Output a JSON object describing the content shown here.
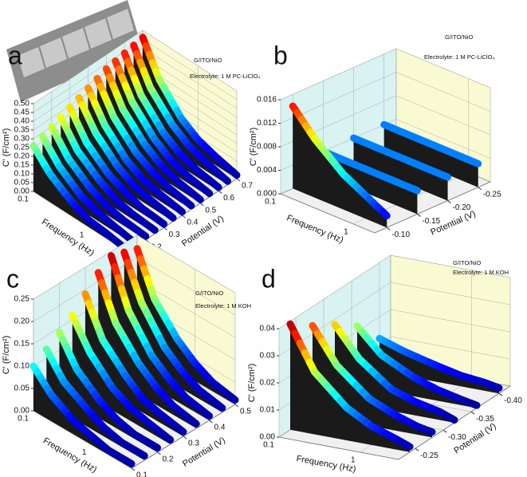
{
  "chart_data": [
    {
      "type": "waterfall",
      "label": "a",
      "annotations": [
        "G/ITO/NiO",
        "Electrolyte: 1 M PC-LiClO₄"
      ],
      "xlabel": "Frequency (Hz)",
      "ylabel": "Potential (V)",
      "zlabel": "C' (F/cm²)",
      "xscale": "log",
      "x": [
        0.1,
        0.2,
        0.5,
        1,
        2,
        5
      ],
      "xlim": [
        0.1,
        5
      ],
      "xticks": [
        0.1,
        1
      ],
      "ylim": [
        0.1,
        0.7
      ],
      "yticks": [
        0.1,
        0.2,
        0.3,
        0.4,
        0.5,
        0.6,
        0.7
      ],
      "zlim": [
        0,
        0.5
      ],
      "zticks": [
        {
          "value": 0,
          "label": "0.00"
        },
        0.05,
        {
          "value": 0.1,
          "label": "0.10"
        },
        0.15,
        {
          "value": 0.2,
          "label": "0.20"
        },
        0.25,
        {
          "value": 0.3,
          "label": "0.30"
        },
        0.35,
        {
          "value": 0.4,
          "label": "0.40"
        },
        0.45,
        {
          "value": 0.5,
          "label": "0.50"
        }
      ],
      "colormap": "jet",
      "grid": true,
      "series": [
        {
          "potential": 0.1,
          "values": [
            0.26,
            0.16,
            0.08,
            0.04,
            0.03,
            0.01
          ]
        },
        {
          "potential": 0.15,
          "values": [
            0.28,
            0.17,
            0.08,
            0.05,
            0.03,
            0.01
          ]
        },
        {
          "potential": 0.2,
          "values": [
            0.3,
            0.18,
            0.09,
            0.05,
            0.03,
            0.02
          ]
        },
        {
          "potential": 0.25,
          "values": [
            0.32,
            0.19,
            0.1,
            0.05,
            0.03,
            0.02
          ]
        },
        {
          "potential": 0.3,
          "values": [
            0.34,
            0.2,
            0.1,
            0.06,
            0.03,
            0.02
          ]
        },
        {
          "potential": 0.35,
          "values": [
            0.36,
            0.22,
            0.11,
            0.06,
            0.04,
            0.02
          ]
        },
        {
          "potential": 0.4,
          "values": [
            0.38,
            0.23,
            0.11,
            0.06,
            0.04,
            0.02
          ]
        },
        {
          "potential": 0.45,
          "values": [
            0.4,
            0.24,
            0.12,
            0.07,
            0.04,
            0.02
          ]
        },
        {
          "potential": 0.5,
          "values": [
            0.42,
            0.25,
            0.13,
            0.07,
            0.04,
            0.02
          ]
        },
        {
          "potential": 0.55,
          "values": [
            0.43,
            0.26,
            0.13,
            0.07,
            0.04,
            0.02
          ]
        },
        {
          "potential": 0.6,
          "values": [
            0.44,
            0.26,
            0.13,
            0.07,
            0.04,
            0.02
          ]
        },
        {
          "potential": 0.65,
          "values": [
            0.45,
            0.27,
            0.14,
            0.08,
            0.05,
            0.02
          ]
        },
        {
          "potential": 0.7,
          "values": [
            0.46,
            0.28,
            0.14,
            0.08,
            0.05,
            0.02
          ]
        }
      ]
    },
    {
      "type": "waterfall",
      "label": "b",
      "annotations": [
        "G/ITO/NiO",
        "Electrolyte: 1 M PC-LiClO₄"
      ],
      "xlabel": "Frequency (Hz)",
      "ylabel": "Potential (V)",
      "zlabel": "C' (F/cm²)",
      "xscale": "log",
      "x": [
        0.1,
        0.2,
        0.5,
        1,
        2
      ],
      "xlim": [
        0.1,
        2
      ],
      "xticks": [
        0.1,
        1
      ],
      "ylim": [
        -0.08,
        -0.27
      ],
      "yticks": [
        {
          "value": -0.1,
          "label": "-0.10"
        },
        -0.15,
        {
          "value": -0.2,
          "label": "-0.20"
        },
        -0.25
      ],
      "zlim": [
        0,
        0.016
      ],
      "zticks": [
        {
          "value": 0,
          "label": "0.000"
        },
        0.004,
        0.008,
        0.012,
        0.016
      ],
      "colormap": "jet",
      "grid": true,
      "series": [
        {
          "potential": -0.1,
          "values": [
            0.014,
            0.01,
            0.006,
            0.004,
            0.002
          ]
        },
        {
          "potential": -0.15,
          "values": [
            0.004,
            0.004,
            0.004,
            0.004,
            0.004
          ]
        },
        {
          "potential": -0.2,
          "values": [
            0.004,
            0.004,
            0.004,
            0.004,
            0.004
          ]
        },
        {
          "potential": -0.25,
          "values": [
            0.004,
            0.004,
            0.004,
            0.004,
            0.004
          ]
        }
      ]
    },
    {
      "type": "waterfall",
      "label": "c",
      "annotations": [
        "G/ITO/NiO",
        "Electrolyte: 1 M KOH"
      ],
      "xlabel": "Frequency (Hz)",
      "ylabel": "Potential (V)",
      "zlabel": "C' (F/cm²)",
      "xscale": "log",
      "x": [
        0.1,
        0.2,
        0.5,
        1,
        2,
        5
      ],
      "xlim": [
        0.1,
        5
      ],
      "xticks": [
        0.1,
        1
      ],
      "ylim": [
        0.1,
        0.5
      ],
      "yticks": [
        0.1,
        0.2,
        0.3,
        0.4,
        0.5
      ],
      "zlim": [
        0,
        0.25
      ],
      "zticks": [
        {
          "value": 0,
          "label": "0.00"
        },
        0.05,
        {
          "value": 0.1,
          "label": "0.10"
        },
        0.15,
        {
          "value": 0.2,
          "label": "0.20"
        },
        0.25
      ],
      "colormap": "jet",
      "grid": true,
      "series": [
        {
          "potential": 0.1,
          "values": [
            0.1,
            0.06,
            0.03,
            0.02,
            0.01,
            0.01
          ]
        },
        {
          "potential": 0.15,
          "values": [
            0.12,
            0.07,
            0.04,
            0.02,
            0.01,
            0.01
          ]
        },
        {
          "potential": 0.2,
          "values": [
            0.14,
            0.08,
            0.04,
            0.02,
            0.01,
            0.01
          ]
        },
        {
          "potential": 0.25,
          "values": [
            0.16,
            0.1,
            0.05,
            0.03,
            0.02,
            0.01
          ]
        },
        {
          "potential": 0.3,
          "values": [
            0.19,
            0.11,
            0.06,
            0.03,
            0.02,
            0.01
          ]
        },
        {
          "potential": 0.35,
          "values": [
            0.22,
            0.13,
            0.07,
            0.04,
            0.02,
            0.01
          ]
        },
        {
          "potential": 0.4,
          "values": [
            0.24,
            0.14,
            0.07,
            0.04,
            0.02,
            0.01
          ]
        },
        {
          "potential": 0.45,
          "values": [
            0.23,
            0.14,
            0.07,
            0.04,
            0.02,
            0.01
          ]
        },
        {
          "potential": 0.5,
          "values": [
            0.22,
            0.13,
            0.07,
            0.04,
            0.02,
            0.01
          ]
        }
      ]
    },
    {
      "type": "waterfall",
      "label": "d",
      "annotations": [
        "G/ITO/NiO",
        "Electrolyte: 1 M KOH"
      ],
      "xlabel": "Frequency (Hz)",
      "ylabel": "Potential (V)",
      "zlabel": "C' (F/cm²)",
      "xscale": "log",
      "x": [
        0.1,
        0.2,
        0.5,
        1,
        2,
        3
      ],
      "xlim": [
        0.1,
        3
      ],
      "xticks": [
        0.1,
        1
      ],
      "ylim": [
        -0.22,
        -0.42
      ],
      "yticks": [
        -0.25,
        {
          "value": -0.3,
          "label": "-0.30"
        },
        -0.35,
        {
          "value": -0.4,
          "label": "-0.40"
        }
      ],
      "zlim": [
        0,
        0.04
      ],
      "zticks": [
        {
          "value": 0,
          "label": "0.00"
        },
        0.01,
        0.02,
        0.03,
        0.04
      ],
      "colormap": "jet",
      "grid": true,
      "series": [
        {
          "potential": -0.24,
          "values": [
            0.039,
            0.023,
            0.012,
            0.007,
            0.004,
            0.002
          ]
        },
        {
          "potential": -0.28,
          "values": [
            0.033,
            0.02,
            0.01,
            0.006,
            0.003,
            0.002
          ]
        },
        {
          "potential": -0.32,
          "values": [
            0.028,
            0.017,
            0.008,
            0.005,
            0.003,
            0.001
          ]
        },
        {
          "potential": -0.36,
          "values": [
            0.022,
            0.013,
            0.007,
            0.004,
            0.002,
            0.001
          ]
        },
        {
          "potential": -0.4,
          "values": [
            0.012,
            0.009,
            0.006,
            0.004,
            0.003,
            0.002
          ]
        }
      ]
    }
  ]
}
